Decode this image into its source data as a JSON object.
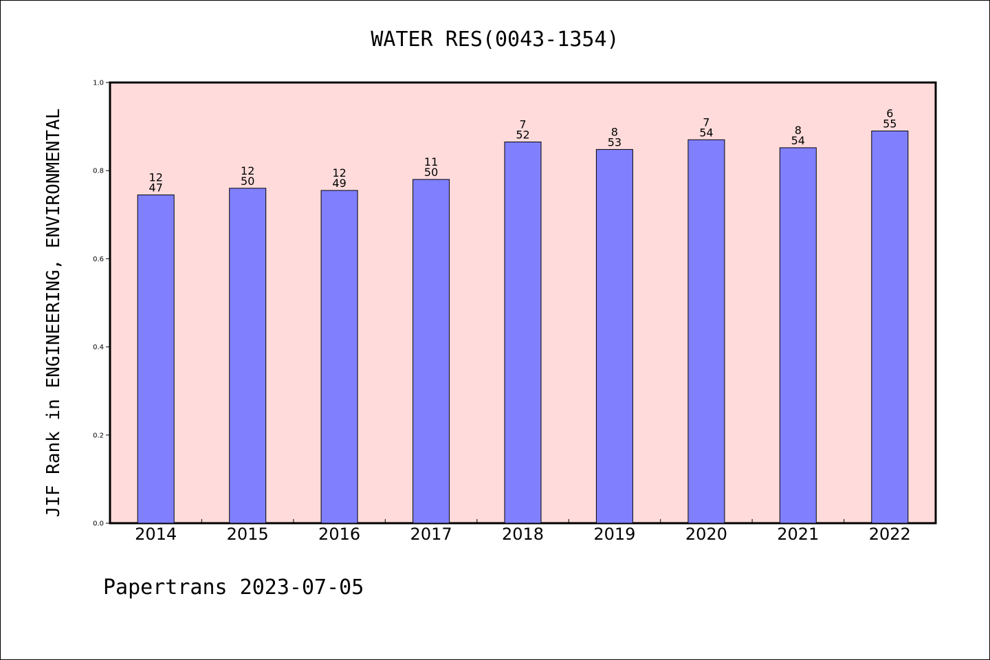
{
  "chart_data": {
    "type": "bar",
    "title": "WATER RES(0043-1354)",
    "xlabel": "",
    "ylabel": "JIF Rank in ENGINEERING, ENVIRONMENTAL",
    "categories": [
      "2014",
      "2015",
      "2016",
      "2017",
      "2018",
      "2019",
      "2020",
      "2021",
      "2022"
    ],
    "values": [
      0.745,
      0.76,
      0.755,
      0.78,
      0.865,
      0.848,
      0.87,
      0.852,
      0.89
    ],
    "labels_top": [
      "12",
      "12",
      "12",
      "11",
      "7",
      "8",
      "7",
      "8",
      "6"
    ],
    "labels_bottom": [
      "47",
      "50",
      "49",
      "50",
      "52",
      "53",
      "54",
      "54",
      "55"
    ],
    "ylim": [
      0,
      1.0
    ],
    "yticks": [
      "0.0",
      "0.2",
      "0.4",
      "0.6",
      "0.8",
      "1.0"
    ],
    "grid": false,
    "colors": {
      "plot_background": "#FFDBDB",
      "bar_fill": "#8080FF",
      "bar_stroke": "#000000",
      "axis": "#000000"
    }
  },
  "footer": {
    "text": "Papertrans 2023-07-05"
  }
}
